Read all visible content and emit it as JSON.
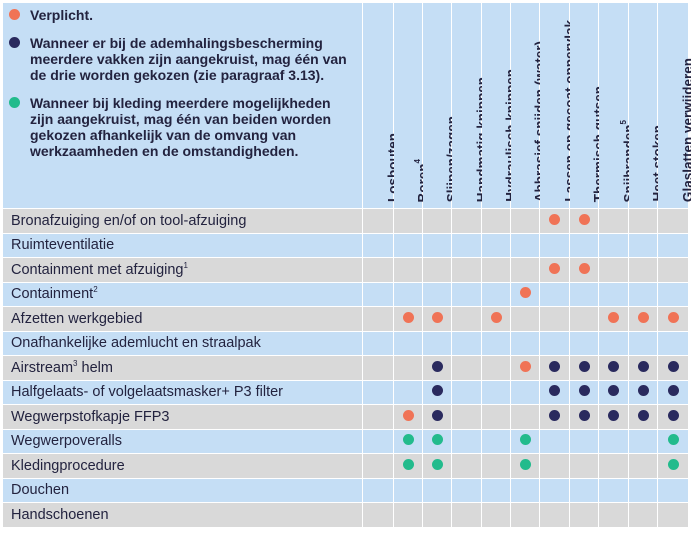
{
  "legend": [
    {
      "type": "required",
      "color": "#f07356",
      "text": "Verplicht."
    },
    {
      "type": "choose_one",
      "color": "#2a2a5e",
      "text": "Wanneer er bij de ademhalingsbescherming\nmeerdere vakken zijn aangekruist, mag één van\nde drie worden gekozen (zie paragraaf 3.13)."
    },
    {
      "type": "choose_one_clothing",
      "color": "#22bb8c",
      "text": "Wanneer bij kleding meerdere mogelijkheden\nzijn aangekruist, mag één van beiden worden\ngekozen afhankelijk van de omvang van\nwerkzaamheden en de omstandigheden."
    }
  ],
  "columns": [
    {
      "label": "Losbouten",
      "sup": ""
    },
    {
      "label": "Boren",
      "sup": "4"
    },
    {
      "label": "Slijpen/zagen",
      "sup": ""
    },
    {
      "label": "Handmatig knippen",
      "sup": ""
    },
    {
      "label": "Hydraulisch knippen",
      "sup": ""
    },
    {
      "label": "Abbrasief snijden (water)",
      "sup": ""
    },
    {
      "label": "Lassen op gecoat oppervlak",
      "sup": ""
    },
    {
      "label": "Thermisch gutsen",
      "sup": ""
    },
    {
      "label": "Snijbranden",
      "sup": "5"
    },
    {
      "label": "Heet stoken",
      "sup": ""
    },
    {
      "label": "Glaslatten verwijderen",
      "sup": ""
    }
  ],
  "rows": [
    {
      "label": "Bronafzuiging en/of on tool-afzuiging",
      "sup": "",
      "cells": [
        "",
        "",
        "",
        "",
        "",
        "",
        "required",
        "required",
        "",
        "",
        ""
      ]
    },
    {
      "label": "Ruimteventilatie",
      "sup": "",
      "cells": [
        "",
        "",
        "",
        "",
        "",
        "",
        "",
        "",
        "",
        "",
        ""
      ]
    },
    {
      "label": "Containment met afzuiging",
      "sup": "1",
      "cells": [
        "",
        "",
        "",
        "",
        "",
        "",
        "required",
        "required",
        "",
        "",
        ""
      ]
    },
    {
      "label": "Containment",
      "sup": "2",
      "cells": [
        "",
        "",
        "",
        "",
        "",
        "required",
        "",
        "",
        "",
        "",
        ""
      ]
    },
    {
      "label": "Afzetten werkgebied",
      "sup": "",
      "cells": [
        "",
        "required",
        "required",
        "",
        "required",
        "",
        "",
        "",
        "required",
        "required",
        "required"
      ]
    },
    {
      "label": "Onafhankelijke ademlucht en straalpak",
      "sup": "",
      "cells": [
        "",
        "",
        "",
        "",
        "",
        "",
        "",
        "",
        "",
        "",
        ""
      ]
    },
    {
      "label": "Airstream",
      "sup": "3",
      "suffix": " helm",
      "cells": [
        "",
        "",
        "choose_one",
        "",
        "",
        "required",
        "choose_one",
        "choose_one",
        "choose_one",
        "choose_one",
        "choose_one"
      ]
    },
    {
      "label": "Halfgelaats- of volgelaatsmasker+ P3 filter",
      "sup": "",
      "cells": [
        "",
        "",
        "choose_one",
        "",
        "",
        "",
        "choose_one",
        "choose_one",
        "choose_one",
        "choose_one",
        "choose_one"
      ]
    },
    {
      "label": "Wegwerpstofkapje FFP3",
      "sup": "",
      "cells": [
        "",
        "required",
        "choose_one",
        "",
        "",
        "",
        "choose_one",
        "choose_one",
        "choose_one",
        "choose_one",
        "choose_one"
      ]
    },
    {
      "label": "Wegwerpoveralls",
      "sup": "",
      "cells": [
        "",
        "choose_one_clothing",
        "choose_one_clothing",
        "",
        "",
        "choose_one_clothing",
        "",
        "",
        "",
        "",
        "choose_one_clothing"
      ]
    },
    {
      "label": "Kledingprocedure",
      "sup": "",
      "cells": [
        "",
        "choose_one_clothing",
        "choose_one_clothing",
        "",
        "",
        "choose_one_clothing",
        "",
        "",
        "",
        "",
        "choose_one_clothing"
      ]
    },
    {
      "label": "Douchen",
      "sup": "",
      "cells": [
        "",
        "",
        "",
        "",
        "",
        "",
        "",
        "",
        "",
        "",
        ""
      ]
    },
    {
      "label": "Handschoenen",
      "sup": "",
      "cells": [
        "",
        "",
        "",
        "",
        "",
        "",
        "",
        "",
        "",
        "",
        ""
      ]
    }
  ]
}
